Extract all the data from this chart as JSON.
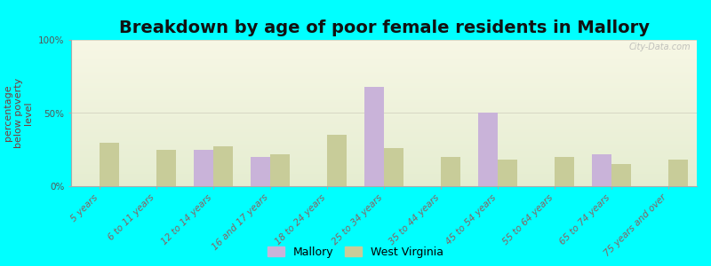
{
  "title": "Breakdown by age of poor female residents in Mallory",
  "ylabel": "percentage\nbelow poverty\nlevel",
  "categories": [
    "5 years",
    "6 to 11 years",
    "12 to 14 years",
    "16 and 17 years",
    "18 to 24 years",
    "25 to 34 years",
    "35 to 44 years",
    "45 to 54 years",
    "55 to 64 years",
    "65 to 74 years",
    "75 years and over"
  ],
  "mallory_values": [
    0,
    0,
    25,
    20,
    0,
    68,
    0,
    50,
    0,
    22,
    0
  ],
  "wv_values": [
    30,
    25,
    27,
    22,
    35,
    26,
    20,
    18,
    20,
    15,
    18
  ],
  "mallory_color": "#c9b3d9",
  "wv_color": "#c8cc99",
  "background_color": "#00ffff",
  "ylim": [
    0,
    100
  ],
  "yticks": [
    0,
    50,
    100
  ],
  "ytick_labels": [
    "0%",
    "50%",
    "100%"
  ],
  "bar_width": 0.35,
  "legend_mallory": "Mallory",
  "legend_wv": "West Virginia",
  "title_fontsize": 14,
  "axis_label_fontsize": 8,
  "tick_fontsize": 7.5,
  "watermark": "City-Data.com"
}
